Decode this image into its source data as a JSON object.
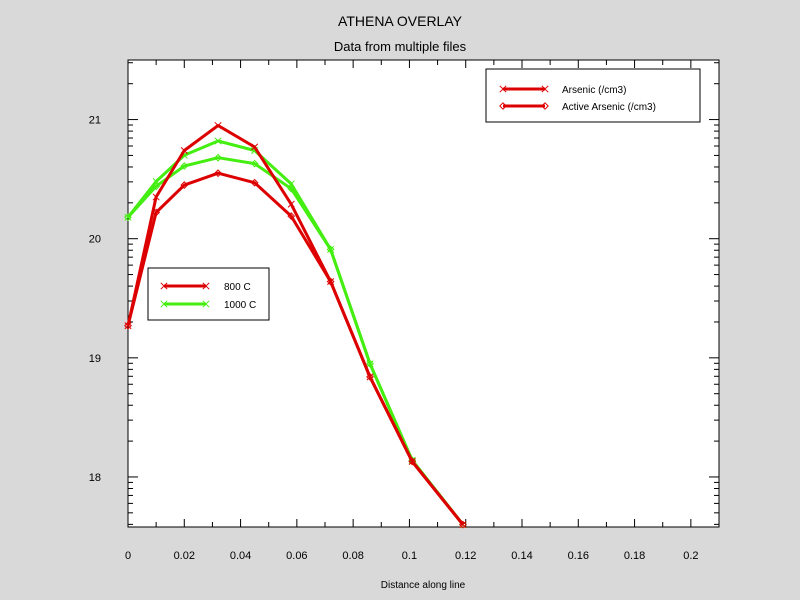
{
  "chart_data": {
    "type": "line",
    "title": "ATHENA OVERLAY",
    "subtitle": "Data from multiple files",
    "xlabel": "Distance along line",
    "ylabel": "",
    "xlim": [
      0,
      0.21
    ],
    "ylim": [
      17.58,
      21.5
    ],
    "x_ticks": [
      "0",
      "0.02",
      "0.04",
      "0.06",
      "0.08",
      "0.1",
      "0.12",
      "0.14",
      "0.16",
      "0.18",
      "0.2"
    ],
    "y_ticks": [
      "18",
      "19",
      "20",
      "21"
    ],
    "grid": false,
    "legend_quantity": {
      "position": "top-right",
      "entries": [
        {
          "label": "Arsenic (/cm3)",
          "marker": "x"
        },
        {
          "label": "Active Arsenic (/cm3)",
          "marker": "diamond"
        }
      ]
    },
    "legend_temperature": {
      "position": "center-left",
      "entries": [
        {
          "label": "800 C",
          "color": "#dd0000"
        },
        {
          "label": "1000 C",
          "color": "#44ee11"
        }
      ]
    },
    "series": [
      {
        "name": "800 C Arsenic (/cm3)",
        "color": "#dd0000",
        "marker": "x",
        "x": [
          0,
          0.01,
          0.02,
          0.032,
          0.045,
          0.058,
          0.072,
          0.086,
          0.101,
          0.119
        ],
        "y": [
          19.27,
          20.35,
          20.74,
          20.95,
          20.77,
          20.29,
          19.64,
          18.84,
          18.13,
          17.6
        ]
      },
      {
        "name": "800 C Active Arsenic (/cm3)",
        "color": "#dd0000",
        "marker": "diamond",
        "x": [
          0,
          0.01,
          0.02,
          0.032,
          0.045,
          0.058,
          0.072,
          0.086,
          0.101,
          0.119
        ],
        "y": [
          19.27,
          20.22,
          20.45,
          20.55,
          20.47,
          20.19,
          19.64,
          18.84,
          18.13,
          17.6
        ]
      },
      {
        "name": "1000 C Arsenic (/cm3)",
        "color": "#44ee11",
        "marker": "x",
        "x": [
          0,
          0.01,
          0.02,
          0.032,
          0.045,
          0.058,
          0.072,
          0.086,
          0.101,
          0.119
        ],
        "y": [
          20.18,
          20.48,
          20.7,
          20.82,
          20.74,
          20.46,
          19.91,
          18.95,
          18.14,
          17.6
        ]
      },
      {
        "name": "1000 C Active Arsenic (/cm3)",
        "color": "#44ee11",
        "marker": "diamond",
        "x": [
          0,
          0.01,
          0.02,
          0.032,
          0.045,
          0.058,
          0.072,
          0.086,
          0.101,
          0.119
        ],
        "y": [
          20.18,
          20.44,
          20.61,
          20.68,
          20.63,
          20.42,
          19.91,
          18.95,
          18.14,
          17.6
        ]
      }
    ]
  }
}
